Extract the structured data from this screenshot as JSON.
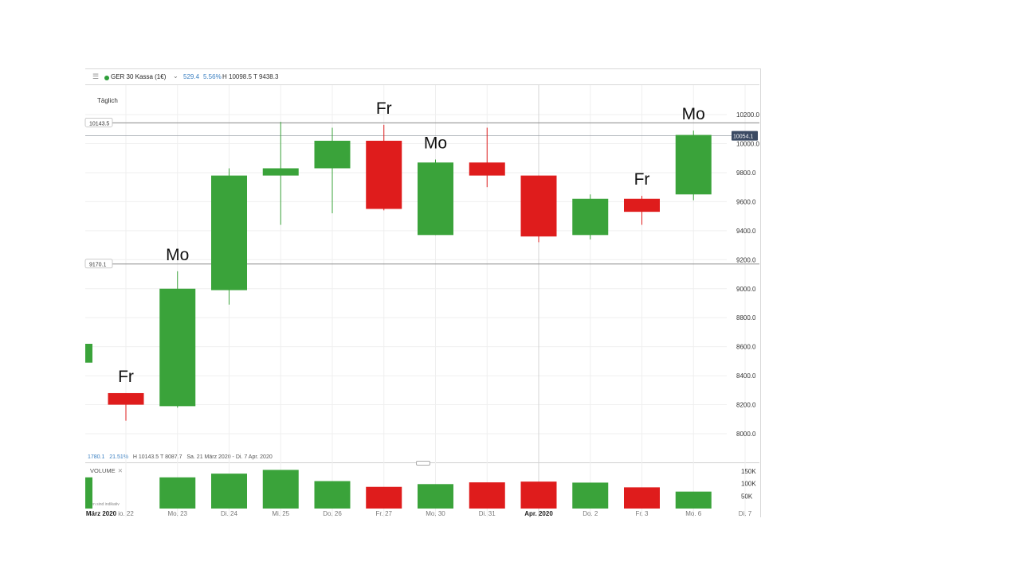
{
  "header": {
    "symbol": "GER 30 Kassa (1€)",
    "change": "529.4",
    "change_pct": "5.56%",
    "high_low": "H 10098.5 T 9438.3"
  },
  "timeframe": "Täglich",
  "footer": {
    "change": "1780.1",
    "change_pct": "21.51%",
    "high_low": "H 10143.5  T 8087.7",
    "range": "Sa. 21 März 2020 - Di. 7 Apr. 2020"
  },
  "volume_label": "VOLUME",
  "disclaimer": "aten sind indikativ",
  "colors": {
    "up": "#3aa33a",
    "down": "#df1c1c"
  },
  "chart_data": {
    "type": "candlestick",
    "ylim": [
      7800,
      10400
    ],
    "y_ticks": [
      "8000.0",
      "8200.0",
      "8400.0",
      "8600.0",
      "8800.0",
      "9000.0",
      "9200.0",
      "9400.0",
      "9600.0",
      "9800.0",
      "10000.0",
      "10200.0"
    ],
    "x_labels": [
      "März 2020",
      "io. 22",
      "Mo. 23",
      "Di. 24",
      "Mi. 25",
      "Do. 26",
      "Fr. 27",
      "Mo. 30",
      "Di. 31",
      "Apr. 2020",
      "Do. 2",
      "Fr. 3",
      "Mo. 6",
      "Di. 7"
    ],
    "levels": [
      {
        "label": "10143.5",
        "value": 10143.5
      },
      {
        "label": "9170.1",
        "value": 9170.1
      }
    ],
    "last_price": {
      "label": "10054.1",
      "value": 10054.1
    },
    "volume_ticks": [
      "150K",
      "100K",
      "50K"
    ],
    "candles": [
      {
        "label": "",
        "open": 8490,
        "close": 8620,
        "high": 8620,
        "low": 8490,
        "volume": 125000
      },
      {
        "label": "Fr",
        "open": 8280,
        "close": 8200,
        "high": 8280,
        "low": 8090,
        "volume": 0
      },
      {
        "label": "Mo",
        "open": 8190,
        "close": 9000,
        "high": 9120,
        "low": 8180,
        "volume": 125000
      },
      {
        "label": "",
        "open": 8990,
        "close": 9780,
        "high": 9830,
        "low": 8890,
        "volume": 140000
      },
      {
        "label": "",
        "open": 9780,
        "close": 9830,
        "high": 10150,
        "low": 9440,
        "volume": 155000
      },
      {
        "label": "",
        "open": 9830,
        "close": 10020,
        "high": 10110,
        "low": 9520,
        "volume": 110000
      },
      {
        "label": "Fr",
        "open": 10020,
        "close": 9550,
        "high": 10130,
        "low": 9540,
        "volume": 87000
      },
      {
        "label": "Mo",
        "open": 9370,
        "close": 9870,
        "high": 9890,
        "low": 9370,
        "volume": 98000
      },
      {
        "label": "",
        "open": 9870,
        "close": 9780,
        "high": 10110,
        "low": 9700,
        "volume": 105000
      },
      {
        "label": "",
        "open": 9780,
        "close": 9360,
        "high": 9780,
        "low": 9320,
        "volume": 108000
      },
      {
        "label": "",
        "open": 9370,
        "close": 9620,
        "high": 9650,
        "low": 9340,
        "volume": 104000
      },
      {
        "label": "Fr",
        "open": 9620,
        "close": 9530,
        "high": 9640,
        "low": 9440,
        "volume": 85000
      },
      {
        "label": "Mo",
        "open": 9650,
        "close": 10060,
        "high": 10090,
        "low": 9610,
        "volume": 68000
      }
    ]
  }
}
